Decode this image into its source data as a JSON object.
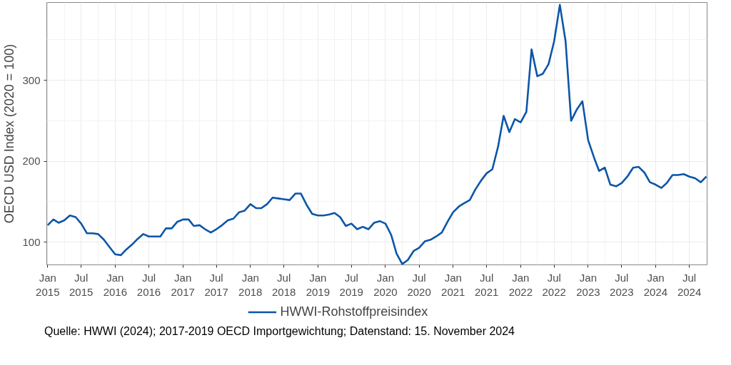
{
  "chart_data": {
    "type": "line",
    "ylabel": "OECD USD Index (2020 = 100)",
    "x": [
      "2015-01",
      "2015-02",
      "2015-03",
      "2015-04",
      "2015-05",
      "2015-06",
      "2015-07",
      "2015-08",
      "2015-09",
      "2015-10",
      "2015-11",
      "2015-12",
      "2016-01",
      "2016-02",
      "2016-03",
      "2016-04",
      "2016-05",
      "2016-06",
      "2016-07",
      "2016-08",
      "2016-09",
      "2016-10",
      "2016-11",
      "2016-12",
      "2017-01",
      "2017-02",
      "2017-03",
      "2017-04",
      "2017-05",
      "2017-06",
      "2017-07",
      "2017-08",
      "2017-09",
      "2017-10",
      "2017-11",
      "2017-12",
      "2018-01",
      "2018-02",
      "2018-03",
      "2018-04",
      "2018-05",
      "2018-06",
      "2018-07",
      "2018-08",
      "2018-09",
      "2018-10",
      "2018-11",
      "2018-12",
      "2019-01",
      "2019-02",
      "2019-03",
      "2019-04",
      "2019-05",
      "2019-06",
      "2019-07",
      "2019-08",
      "2019-09",
      "2019-10",
      "2019-11",
      "2019-12",
      "2020-01",
      "2020-02",
      "2020-03",
      "2020-04",
      "2020-05",
      "2020-06",
      "2020-07",
      "2020-08",
      "2020-09",
      "2020-10",
      "2020-11",
      "2020-12",
      "2021-01",
      "2021-02",
      "2021-03",
      "2021-04",
      "2021-05",
      "2021-06",
      "2021-07",
      "2021-08",
      "2021-09",
      "2021-10",
      "2021-11",
      "2021-12",
      "2022-01",
      "2022-02",
      "2022-03",
      "2022-04",
      "2022-05",
      "2022-06",
      "2022-07",
      "2022-08",
      "2022-09",
      "2022-10",
      "2022-11",
      "2022-12",
      "2023-01",
      "2023-02",
      "2023-03",
      "2023-04",
      "2023-05",
      "2023-06",
      "2023-07",
      "2023-08",
      "2023-09",
      "2023-10",
      "2023-11",
      "2023-12",
      "2024-01",
      "2024-02",
      "2024-03",
      "2024-04",
      "2024-05",
      "2024-06",
      "2024-07",
      "2024-08",
      "2024-09",
      "2024-10"
    ],
    "series": [
      {
        "name": "HWWI-Rohstoffpreisindex",
        "color": "#0b56a8",
        "values": [
          121,
          128,
          124,
          127,
          133,
          131,
          123,
          111,
          111,
          110,
          103,
          94,
          85,
          84,
          91,
          97,
          104,
          110,
          107,
          107,
          107,
          117,
          117,
          125,
          128,
          128,
          120,
          121,
          116,
          112,
          116,
          121,
          127,
          129,
          137,
          139,
          147,
          142,
          142,
          147,
          155,
          154,
          153,
          152,
          160,
          160,
          146,
          135,
          133,
          133,
          134,
          136,
          131,
          120,
          123,
          116,
          119,
          116,
          124,
          126,
          123,
          109,
          86,
          73,
          78,
          89,
          93,
          101,
          103,
          107,
          112,
          125,
          137,
          144,
          148,
          152,
          165,
          176,
          185,
          190,
          218,
          256,
          236,
          252,
          248,
          261,
          338,
          305,
          308,
          320,
          348,
          393,
          348,
          250,
          264,
          274,
          226,
          205,
          188,
          192,
          171,
          169,
          173,
          181,
          192,
          193,
          186,
          174,
          171,
          167,
          173,
          183,
          183,
          184,
          181,
          179,
          174,
          181
        ]
      }
    ],
    "xlim": [
      "2014-12-27",
      "2024-10-05"
    ],
    "ylim": [
      72,
      396
    ],
    "xticks": [
      {
        "value": "2015-01",
        "label": "Jan\n2015"
      },
      {
        "value": "2015-07",
        "label": "Jul\n2015"
      },
      {
        "value": "2016-01",
        "label": "Jan\n2016"
      },
      {
        "value": "2016-07",
        "label": "Jul\n2016"
      },
      {
        "value": "2017-01",
        "label": "Jan\n2017"
      },
      {
        "value": "2017-07",
        "label": "Jul\n2017"
      },
      {
        "value": "2018-01",
        "label": "Jan\n2018"
      },
      {
        "value": "2018-07",
        "label": "Jul\n2018"
      },
      {
        "value": "2019-01",
        "label": "Jan\n2019"
      },
      {
        "value": "2019-07",
        "label": "Jul\n2019"
      },
      {
        "value": "2020-01",
        "label": "Jan\n2020"
      },
      {
        "value": "2020-07",
        "label": "Jul\n2020"
      },
      {
        "value": "2021-01",
        "label": "Jan\n2021"
      },
      {
        "value": "2021-07",
        "label": "Jul\n2021"
      },
      {
        "value": "2022-01",
        "label": "Jan\n2022"
      },
      {
        "value": "2022-07",
        "label": "Jul\n2022"
      },
      {
        "value": "2023-01",
        "label": "Jan\n2023"
      },
      {
        "value": "2023-07",
        "label": "Jul\n2023"
      },
      {
        "value": "2024-01",
        "label": "Jan\n2024"
      },
      {
        "value": "2024-07",
        "label": "Jul\n2024"
      }
    ],
    "yticks": [
      100,
      200,
      300
    ],
    "grid": true,
    "legend": "bottom",
    "line_style": "solid",
    "annotations": [
      "Quelle: HWWI (2024); 2017-2019 OECD Importgewichtung; Datenstand: 15. November 2024"
    ]
  }
}
